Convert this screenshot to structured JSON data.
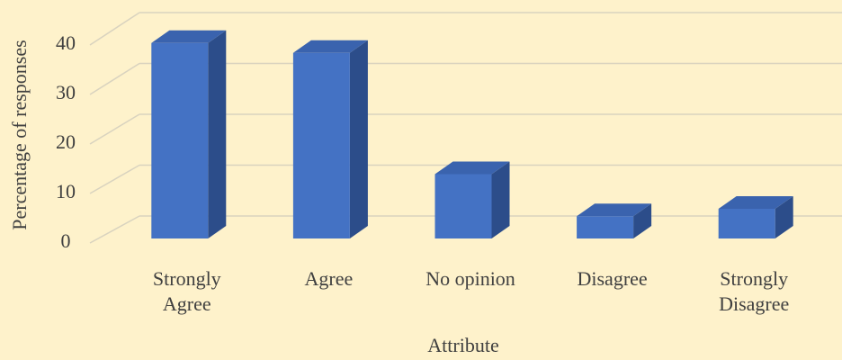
{
  "chart_data": {
    "type": "bar3d",
    "categories": [
      "Strongly Agree",
      "Agree",
      "No opinion",
      "Disagree",
      "Strongly Disagree"
    ],
    "values": [
      39.5,
      37.5,
      13,
      4.5,
      6
    ],
    "color": "#4472c4",
    "ylim": [
      0,
      40
    ],
    "yticks": [
      0,
      10,
      20,
      30,
      40
    ],
    "grid": true,
    "y_label": "Percentage of responses",
    "x_label": "Attribute"
  }
}
